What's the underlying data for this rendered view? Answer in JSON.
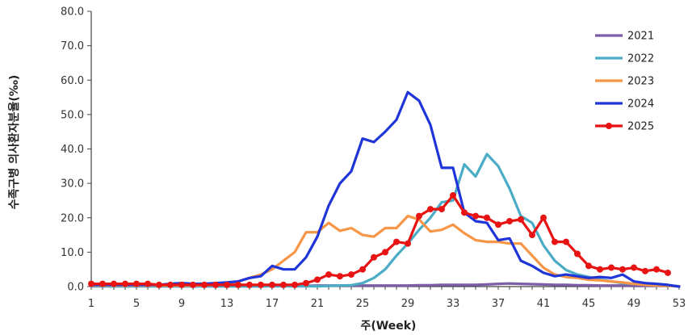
{
  "chart_data": {
    "type": "line",
    "title": "",
    "xlabel": "주(Week)",
    "ylabel": "수족구병 의사환자분율(‰)",
    "xlim": [
      1,
      53
    ],
    "ylim": [
      0,
      80
    ],
    "x_ticks": [
      "1",
      "5",
      "9",
      "13",
      "17",
      "21",
      "25",
      "29",
      "33",
      "37",
      "41",
      "45",
      "49",
      "53"
    ],
    "y_ticks": [
      "0.0",
      "10.0",
      "20.0",
      "30.0",
      "40.0",
      "50.0",
      "60.0",
      "70.0",
      "80.0"
    ],
    "legend_position": "top-right",
    "grid": false,
    "series": [
      {
        "name": "2021",
        "color": "#7b5ea7",
        "markers": false,
        "x": [
          1,
          2,
          3,
          4,
          5,
          6,
          7,
          8,
          9,
          10,
          11,
          12,
          13,
          14,
          15,
          16,
          17,
          18,
          19,
          20,
          21,
          22,
          23,
          24,
          25,
          26,
          27,
          28,
          29,
          30,
          31,
          32,
          33,
          34,
          35,
          36,
          37,
          38,
          39,
          40,
          41,
          42,
          43,
          44,
          45,
          46,
          47,
          48,
          49,
          50,
          51,
          52,
          53
        ],
        "values": [
          0.1,
          0.1,
          0.1,
          0.1,
          0.1,
          0.1,
          0.1,
          0.1,
          0.1,
          0.1,
          0.1,
          0.1,
          0.1,
          0.1,
          0.1,
          0.1,
          0.2,
          0.2,
          0.2,
          0.2,
          0.3,
          0.3,
          0.3,
          0.3,
          0.3,
          0.3,
          0.3,
          0.3,
          0.3,
          0.4,
          0.4,
          0.5,
          0.5,
          0.5,
          0.5,
          0.6,
          0.8,
          0.9,
          0.8,
          0.7,
          0.6,
          0.5,
          0.5,
          0.4,
          0.4,
          0.3,
          0.3,
          0.3,
          0.2,
          0.2,
          0.2,
          0.2,
          0.1
        ]
      },
      {
        "name": "2022",
        "color": "#4aacc5",
        "markers": false,
        "x": [
          1,
          2,
          3,
          4,
          5,
          6,
          7,
          8,
          9,
          10,
          11,
          12,
          13,
          14,
          15,
          16,
          17,
          18,
          19,
          20,
          21,
          22,
          23,
          24,
          25,
          26,
          27,
          28,
          29,
          30,
          31,
          32,
          33,
          34,
          35,
          36,
          37,
          38,
          39,
          40,
          41,
          42,
          43,
          44,
          45,
          46,
          47,
          48,
          49,
          50,
          51,
          52,
          53
        ],
        "values": [
          0.1,
          0.1,
          0.1,
          0.1,
          0.1,
          0.1,
          0.1,
          0.1,
          0.1,
          0.1,
          0.1,
          0.1,
          0.1,
          0.1,
          0.1,
          0.1,
          0.1,
          0.1,
          0.1,
          0.1,
          0.1,
          0.2,
          0.3,
          0.4,
          1.0,
          2.5,
          5.0,
          9.0,
          12.5,
          16.5,
          20.0,
          24.5,
          25.0,
          35.5,
          32.0,
          38.5,
          35.0,
          28.5,
          20.5,
          18.5,
          12.0,
          7.5,
          4.8,
          3.5,
          2.8,
          2.0,
          1.5,
          1.0,
          0.8,
          0.5,
          0.3,
          0.2,
          0.1
        ]
      },
      {
        "name": "2023",
        "color": "#f79646",
        "markers": false,
        "x": [
          1,
          2,
          3,
          4,
          5,
          6,
          7,
          8,
          9,
          10,
          11,
          12,
          13,
          14,
          15,
          16,
          17,
          18,
          19,
          20,
          21,
          22,
          23,
          24,
          25,
          26,
          27,
          28,
          29,
          30,
          31,
          32,
          33,
          34,
          35,
          36,
          37,
          38,
          39,
          40,
          41,
          42,
          43,
          44,
          45,
          46,
          47,
          48,
          49,
          50,
          51,
          52,
          53
        ],
        "values": [
          0.3,
          0.3,
          0.3,
          0.3,
          0.3,
          0.3,
          0.3,
          0.3,
          0.3,
          0.3,
          0.4,
          0.5,
          0.8,
          1.5,
          2.5,
          3.5,
          5.0,
          7.5,
          10.0,
          15.8,
          15.8,
          18.5,
          16.2,
          17.0,
          15.0,
          14.5,
          17.0,
          17.0,
          20.5,
          19.5,
          16.0,
          16.5,
          18.0,
          15.5,
          13.5,
          13.0,
          13.0,
          12.5,
          12.5,
          9.0,
          5.5,
          3.5,
          2.8,
          2.5,
          2.0,
          1.8,
          1.5,
          1.2,
          0.8,
          0.5,
          0.3,
          0.2,
          0.1
        ]
      },
      {
        "name": "2024",
        "color": "#1f35d8",
        "markers": false,
        "x": [
          1,
          2,
          3,
          4,
          5,
          6,
          7,
          8,
          9,
          10,
          11,
          12,
          13,
          14,
          15,
          16,
          17,
          18,
          19,
          20,
          21,
          22,
          23,
          24,
          25,
          26,
          27,
          28,
          29,
          30,
          31,
          32,
          33,
          34,
          35,
          36,
          37,
          38,
          39,
          40,
          41,
          42,
          43,
          44,
          45,
          46,
          47,
          48,
          49,
          50,
          51,
          52,
          53
        ],
        "values": [
          0.5,
          0.5,
          0.5,
          0.5,
          0.5,
          0.5,
          0.5,
          0.8,
          1.0,
          0.8,
          0.8,
          1.0,
          1.2,
          1.5,
          2.5,
          3.0,
          6.0,
          5.0,
          5.0,
          8.5,
          14.5,
          23.5,
          30.0,
          33.5,
          43.0,
          42.0,
          45.0,
          48.5,
          56.5,
          54.0,
          47.0,
          34.5,
          34.5,
          21.5,
          19.0,
          18.5,
          13.5,
          14.0,
          7.5,
          6.0,
          4.0,
          3.0,
          3.5,
          3.0,
          2.5,
          2.8,
          2.5,
          3.5,
          1.5,
          1.0,
          0.8,
          0.5,
          0.0
        ]
      },
      {
        "name": "2025",
        "color": "#e81414",
        "markers": true,
        "x": [
          1,
          2,
          3,
          4,
          5,
          6,
          7,
          8,
          9,
          10,
          11,
          12,
          13,
          14,
          15,
          16,
          17,
          18,
          19,
          20,
          21,
          22,
          23,
          24,
          25,
          26,
          27,
          28,
          29,
          30,
          31,
          32,
          33,
          34,
          35,
          36,
          37,
          38,
          39,
          40,
          41,
          42,
          43,
          44,
          45,
          46,
          47,
          48,
          49,
          50,
          51,
          52
        ],
        "values": [
          0.8,
          0.8,
          0.8,
          0.8,
          0.8,
          0.8,
          0.5,
          0.5,
          0.5,
          0.5,
          0.5,
          0.5,
          0.5,
          0.5,
          0.5,
          0.5,
          0.5,
          0.5,
          0.5,
          1.0,
          2.0,
          3.5,
          3.0,
          3.5,
          5.0,
          8.5,
          10.0,
          13.0,
          12.5,
          20.5,
          22.5,
          22.5,
          26.5,
          21.5,
          20.5,
          20.0,
          18.0,
          19.0,
          19.5,
          15.0,
          20.0,
          13.0,
          13.0,
          9.5,
          6.0,
          5.0,
          5.5,
          5.0,
          5.5,
          4.5,
          5.0,
          4.0
        ]
      }
    ]
  }
}
